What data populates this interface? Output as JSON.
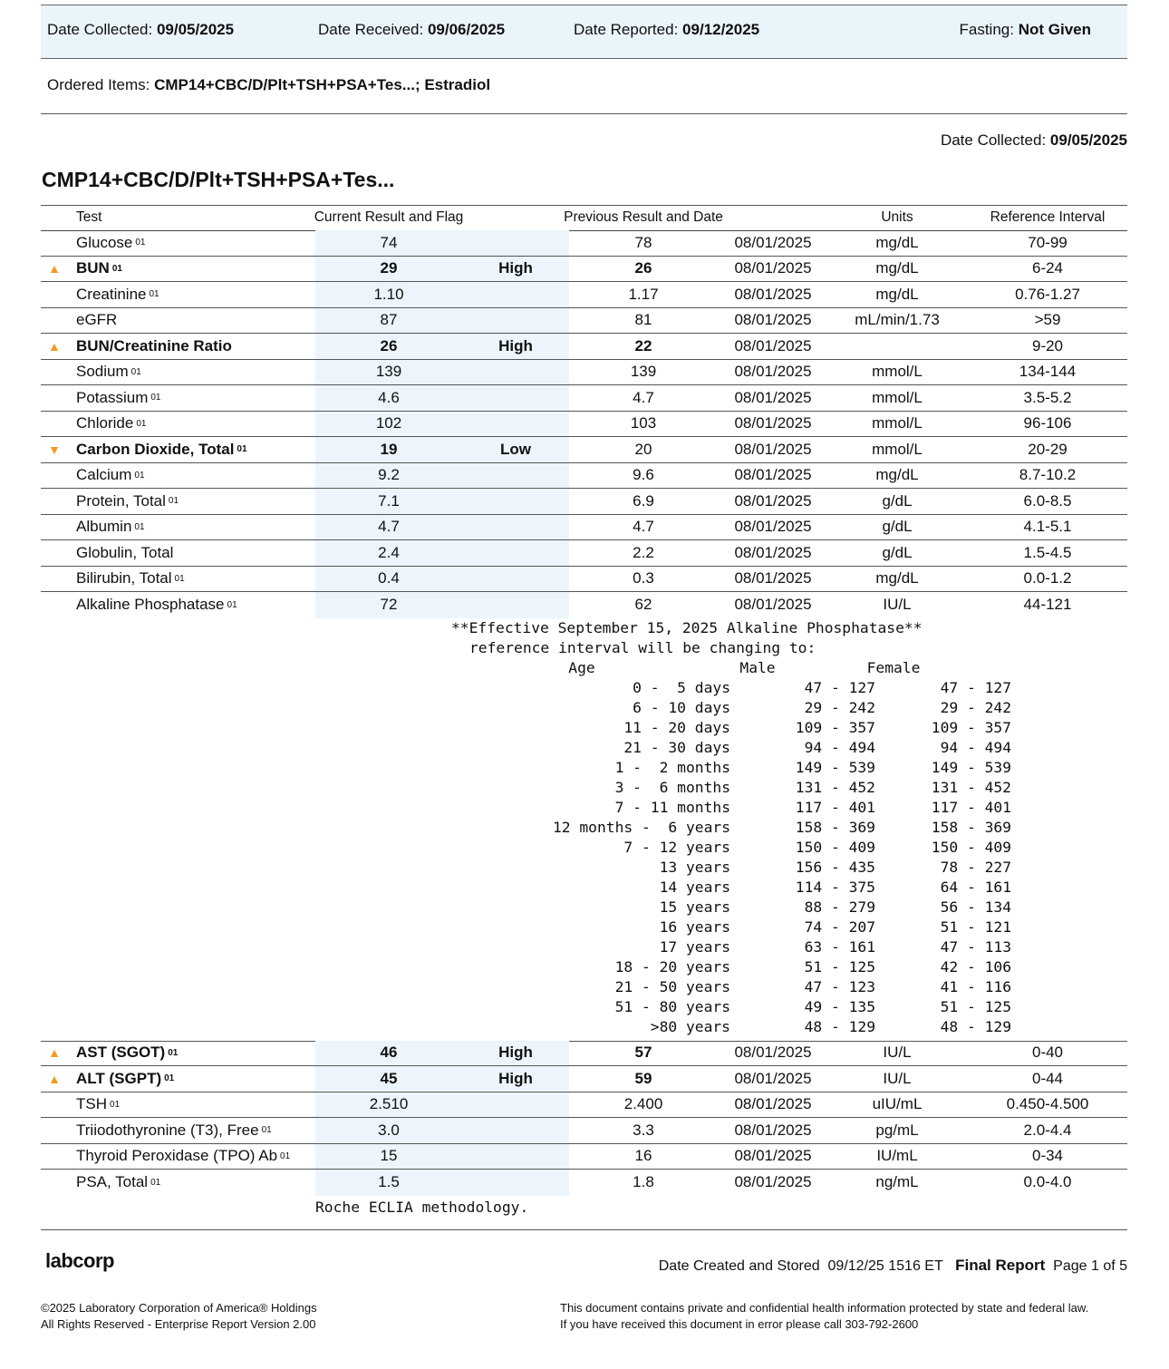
{
  "header": {
    "fields": [
      {
        "label": "Date Collected:",
        "value": "09/05/2025"
      },
      {
        "label": "Date Received:",
        "value": "09/06/2025"
      },
      {
        "label": "Date Reported:",
        "value": "09/12/2025"
      },
      {
        "label": "Fasting:",
        "value": "Not Given"
      }
    ]
  },
  "ordered": {
    "label": "Ordered Items:",
    "value": "CMP14+CBC/D/Plt+TSH+PSA+Tes...; Estradiol"
  },
  "section": {
    "date_label": "Date Collected:",
    "date": "09/05/2025",
    "title": "CMP14+CBC/D/Plt+TSH+PSA+Tes..."
  },
  "table": {
    "columns": [
      "Test",
      "Current Result and Flag",
      "Previous Result and Date",
      "Units",
      "Reference Interval"
    ],
    "rows": [
      {
        "test": "Glucose",
        "sup": "01",
        "result": "74",
        "previous": "78",
        "date": "08/01/2025",
        "units": "mg/dL",
        "reference": "70-99"
      },
      {
        "test": "BUN",
        "sup": "01",
        "result": "29",
        "flag": "High",
        "previous": "26",
        "date": "08/01/2025",
        "units": "mg/dL",
        "reference": "6-24"
      },
      {
        "test": "Creatinine",
        "sup": "01",
        "result": "1.10",
        "previous": "1.17",
        "date": "08/01/2025",
        "units": "mg/dL",
        "reference": "0.76-1.27"
      },
      {
        "test": "eGFR",
        "result": "87",
        "previous": "81",
        "date": "08/01/2025",
        "units": "mL/min/1.73",
        "reference": ">59"
      },
      {
        "test": "BUN/Creatinine Ratio",
        "result": "26",
        "flag": "High",
        "previous": "22",
        "date": "08/01/2025",
        "reference": "9-20"
      },
      {
        "test": "Sodium",
        "sup": "01",
        "result": "139",
        "previous": "139",
        "date": "08/01/2025",
        "units": "mmol/L",
        "reference": "134-144"
      },
      {
        "test": "Potassium",
        "sup": "01",
        "result": "4.6",
        "previous": "4.7",
        "date": "08/01/2025",
        "units": "mmol/L",
        "reference": "3.5-5.2"
      },
      {
        "test": "Chloride",
        "sup": "01",
        "result": "102",
        "previous": "103",
        "date": "08/01/2025",
        "units": "mmol/L",
        "reference": "96-106"
      },
      {
        "test": "Carbon Dioxide, Total",
        "sup": "01",
        "result": "19",
        "flag": "Low",
        "previous": "20",
        "date": "08/01/2025",
        "units": "mmol/L",
        "reference": "20-29"
      },
      {
        "test": "Calcium",
        "sup": "01",
        "result": "9.2",
        "previous": "9.6",
        "date": "08/01/2025",
        "units": "mg/dL",
        "reference": "8.7-10.2"
      },
      {
        "test": "Protein, Total",
        "sup": "01",
        "result": "7.1",
        "previous": "6.9",
        "date": "08/01/2025",
        "units": "g/dL",
        "reference": "6.0-8.5"
      },
      {
        "test": "Albumin",
        "sup": "01",
        "result": "4.7",
        "previous": "4.7",
        "date": "08/01/2025",
        "units": "g/dL",
        "reference": "4.1-5.1"
      },
      {
        "test": "Globulin, Total",
        "result": "2.4",
        "previous": "2.2",
        "date": "08/01/2025",
        "units": "g/dL",
        "reference": "1.5-4.5"
      },
      {
        "test": "Bilirubin, Total",
        "sup": "01",
        "result": "0.4",
        "previous": "0.3",
        "date": "08/01/2025",
        "units": "mg/dL",
        "reference": "0.0-1.2"
      },
      {
        "test": "Alkaline Phosphatase",
        "sup": "01",
        "result": "72",
        "previous": "62",
        "date": "08/01/2025",
        "units": "IU/L",
        "reference": "44-121",
        "note": {
          "lines": [
            "**Effective September 15, 2025 Alkaline Phosphatase**",
            "reference interval will be changing to:"
          ],
          "columns": [
            "Age",
            "Male",
            "Female"
          ],
          "ranges": [
            [
              "0 -  5 days",
              "47 - 127",
              "47 - 127"
            ],
            [
              "6 - 10 days",
              "29 - 242",
              "29 - 242"
            ],
            [
              "11 - 20 days",
              "109 - 357",
              "109 - 357"
            ],
            [
              "21 - 30 days",
              "94 - 494",
              "94 - 494"
            ],
            [
              "1 -  2 months",
              "149 - 539",
              "149 - 539"
            ],
            [
              "3 -  6 months",
              "131 - 452",
              "131 - 452"
            ],
            [
              "7 - 11 months",
              "117 - 401",
              "117 - 401"
            ],
            [
              "12 months -  6 years",
              "158 - 369",
              "158 - 369"
            ],
            [
              "7 - 12 years",
              "150 - 409",
              "150 - 409"
            ],
            [
              "13 years",
              "156 - 435",
              "78 - 227"
            ],
            [
              "14 years",
              "114 - 375",
              "64 - 161"
            ],
            [
              "15 years",
              "88 - 279",
              "56 - 134"
            ],
            [
              "16 years",
              "74 - 207",
              "51 - 121"
            ],
            [
              "17 years",
              "63 - 161",
              "47 - 113"
            ],
            [
              "18 - 20 years",
              "51 - 125",
              "42 - 106"
            ],
            [
              "21 - 50 years",
              "47 - 123",
              "41 - 116"
            ],
            [
              "51 - 80 years",
              "49 - 135",
              "51 - 125"
            ],
            [
              ">80 years",
              "48 - 129",
              "48 - 129"
            ]
          ]
        }
      },
      {
        "test": "AST (SGOT)",
        "sup": "01",
        "result": "46",
        "flag": "High",
        "previous": "57",
        "date": "08/01/2025",
        "units": "IU/L",
        "reference": "0-40"
      },
      {
        "test": "ALT (SGPT)",
        "sup": "01",
        "result": "45",
        "flag": "High",
        "previous": "59",
        "date": "08/01/2025",
        "units": "IU/L",
        "reference": "0-44"
      },
      {
        "test": "TSH",
        "sup": "01",
        "result": "2.510",
        "previous": "2.400",
        "date": "08/01/2025",
        "units": "uIU/mL",
        "reference": "0.450-4.500"
      },
      {
        "test": "Triiodothyronine (T3), Free",
        "sup": "01",
        "result": "3.0",
        "previous": "3.3",
        "date": "08/01/2025",
        "units": "pg/mL",
        "reference": "2.0-4.4"
      },
      {
        "test": "Thyroid Peroxidase (TPO) Ab",
        "sup": "01",
        "result": "15",
        "previous": "16",
        "date": "08/01/2025",
        "units": "IU/mL",
        "reference": "0-34"
      },
      {
        "test": "PSA, Total",
        "sup": "01",
        "result": "1.5",
        "previous": "1.8",
        "date": "08/01/2025",
        "units": "ng/mL",
        "reference": "0.0-4.0",
        "method": "Roche ECLIA methodology."
      }
    ]
  },
  "footer": {
    "logo": "labcorp",
    "created_label": "Date Created and Stored",
    "created": "09/12/25 1516 ET",
    "status": "Final Report",
    "page": "Page 1 of 5",
    "copyright": [
      "©2025 Laboratory Corporation of America® Holdings",
      "All Rights Reserved - Enterprise Report Version 2.00"
    ],
    "notice": [
      "This document contains private and confidential health information protected by state and federal law.",
      "If you have received this document in error please call 303-792-2600"
    ]
  }
}
